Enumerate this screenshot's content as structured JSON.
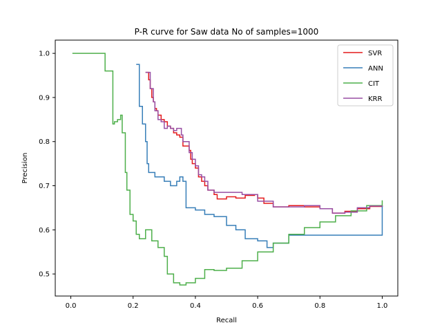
{
  "chart_data": {
    "type": "line",
    "title": "P-R curve for Saw data No of samples=1000",
    "xlabel": "Recall",
    "ylabel": "Precision",
    "xlim": [
      -0.05,
      1.05
    ],
    "ylim": [
      0.45,
      1.03
    ],
    "x_ticks": [
      0.0,
      0.2,
      0.4,
      0.6,
      0.8,
      1.0
    ],
    "x_tick_labels": [
      "0.0",
      "0.2",
      "0.4",
      "0.6",
      "0.8",
      "1.0"
    ],
    "y_ticks": [
      0.5,
      0.6,
      0.7,
      0.8,
      0.9,
      1.0
    ],
    "y_tick_labels": [
      "0.5",
      "0.6",
      "0.7",
      "0.8",
      "0.9",
      "1.0"
    ],
    "grid": false,
    "legend_position": "top-right",
    "step": true,
    "series": [
      {
        "name": "SVR",
        "color": "#e41a1c",
        "points": [
          [
            0.24,
            0.957
          ],
          [
            0.25,
            0.94
          ],
          [
            0.255,
            0.92
          ],
          [
            0.26,
            0.9
          ],
          [
            0.265,
            0.89
          ],
          [
            0.27,
            0.875
          ],
          [
            0.275,
            0.87
          ],
          [
            0.28,
            0.86
          ],
          [
            0.29,
            0.85
          ],
          [
            0.3,
            0.845
          ],
          [
            0.31,
            0.835
          ],
          [
            0.32,
            0.83
          ],
          [
            0.33,
            0.82
          ],
          [
            0.34,
            0.815
          ],
          [
            0.35,
            0.81
          ],
          [
            0.36,
            0.79
          ],
          [
            0.38,
            0.78
          ],
          [
            0.385,
            0.76
          ],
          [
            0.39,
            0.75
          ],
          [
            0.4,
            0.74
          ],
          [
            0.41,
            0.72
          ],
          [
            0.42,
            0.71
          ],
          [
            0.43,
            0.7
          ],
          [
            0.44,
            0.69
          ],
          [
            0.46,
            0.68
          ],
          [
            0.47,
            0.67
          ],
          [
            0.5,
            0.675
          ],
          [
            0.53,
            0.672
          ],
          [
            0.56,
            0.678
          ],
          [
            0.59,
            0.68
          ],
          [
            0.6,
            0.672
          ],
          [
            0.62,
            0.66
          ],
          [
            0.65,
            0.652
          ],
          [
            0.7,
            0.655
          ],
          [
            0.75,
            0.652
          ],
          [
            0.8,
            0.648
          ],
          [
            0.84,
            0.638
          ],
          [
            0.88,
            0.642
          ],
          [
            0.92,
            0.648
          ],
          [
            0.96,
            0.653
          ],
          [
            1.0,
            0.655
          ]
        ]
      },
      {
        "name": "ANN",
        "color": "#377eb8",
        "points": [
          [
            0.21,
            0.975
          ],
          [
            0.22,
            0.88
          ],
          [
            0.23,
            0.84
          ],
          [
            0.24,
            0.8
          ],
          [
            0.245,
            0.75
          ],
          [
            0.25,
            0.73
          ],
          [
            0.27,
            0.72
          ],
          [
            0.3,
            0.71
          ],
          [
            0.32,
            0.7
          ],
          [
            0.34,
            0.71
          ],
          [
            0.35,
            0.72
          ],
          [
            0.36,
            0.71
          ],
          [
            0.37,
            0.65
          ],
          [
            0.4,
            0.645
          ],
          [
            0.43,
            0.635
          ],
          [
            0.46,
            0.63
          ],
          [
            0.5,
            0.61
          ],
          [
            0.53,
            0.6
          ],
          [
            0.56,
            0.58
          ],
          [
            0.6,
            0.575
          ],
          [
            0.63,
            0.56
          ],
          [
            0.65,
            0.57
          ],
          [
            0.7,
            0.57
          ],
          [
            0.7,
            0.588
          ],
          [
            1.0,
            0.588
          ],
          [
            1.0,
            0.655
          ]
        ]
      },
      {
        "name": "CIT",
        "color": "#4daf4a",
        "points": [
          [
            0.005,
            1.0
          ],
          [
            0.11,
            1.0
          ],
          [
            0.11,
            0.96
          ],
          [
            0.125,
            0.96
          ],
          [
            0.135,
            0.84
          ],
          [
            0.14,
            0.845
          ],
          [
            0.15,
            0.85
          ],
          [
            0.16,
            0.86
          ],
          [
            0.165,
            0.82
          ],
          [
            0.175,
            0.73
          ],
          [
            0.18,
            0.69
          ],
          [
            0.19,
            0.635
          ],
          [
            0.2,
            0.62
          ],
          [
            0.21,
            0.59
          ],
          [
            0.22,
            0.58
          ],
          [
            0.24,
            0.6
          ],
          [
            0.26,
            0.575
          ],
          [
            0.28,
            0.56
          ],
          [
            0.3,
            0.54
          ],
          [
            0.31,
            0.5
          ],
          [
            0.33,
            0.48
          ],
          [
            0.35,
            0.475
          ],
          [
            0.37,
            0.48
          ],
          [
            0.4,
            0.49
          ],
          [
            0.43,
            0.51
          ],
          [
            0.46,
            0.508
          ],
          [
            0.5,
            0.513
          ],
          [
            0.55,
            0.53
          ],
          [
            0.6,
            0.55
          ],
          [
            0.65,
            0.57
          ],
          [
            0.7,
            0.59
          ],
          [
            0.75,
            0.605
          ],
          [
            0.8,
            0.618
          ],
          [
            0.85,
            0.632
          ],
          [
            0.9,
            0.643
          ],
          [
            0.95,
            0.655
          ],
          [
            1.0,
            0.667
          ]
        ]
      },
      {
        "name": "KRR",
        "color": "#984ea3",
        "points": [
          [
            0.24,
            0.957
          ],
          [
            0.255,
            0.92
          ],
          [
            0.265,
            0.89
          ],
          [
            0.27,
            0.87
          ],
          [
            0.28,
            0.85
          ],
          [
            0.29,
            0.845
          ],
          [
            0.3,
            0.83
          ],
          [
            0.31,
            0.835
          ],
          [
            0.32,
            0.83
          ],
          [
            0.33,
            0.825
          ],
          [
            0.34,
            0.83
          ],
          [
            0.35,
            0.83
          ],
          [
            0.355,
            0.815
          ],
          [
            0.36,
            0.8
          ],
          [
            0.37,
            0.8
          ],
          [
            0.38,
            0.775
          ],
          [
            0.39,
            0.76
          ],
          [
            0.4,
            0.745
          ],
          [
            0.41,
            0.725
          ],
          [
            0.42,
            0.72
          ],
          [
            0.43,
            0.71
          ],
          [
            0.44,
            0.69
          ],
          [
            0.46,
            0.685
          ],
          [
            0.5,
            0.685
          ],
          [
            0.55,
            0.68
          ],
          [
            0.6,
            0.665
          ],
          [
            0.65,
            0.652
          ],
          [
            0.7,
            0.652
          ],
          [
            0.75,
            0.655
          ],
          [
            0.8,
            0.648
          ],
          [
            0.84,
            0.638
          ],
          [
            0.88,
            0.64
          ],
          [
            0.92,
            0.65
          ],
          [
            0.96,
            0.654
          ],
          [
            1.0,
            0.655
          ]
        ]
      }
    ]
  }
}
